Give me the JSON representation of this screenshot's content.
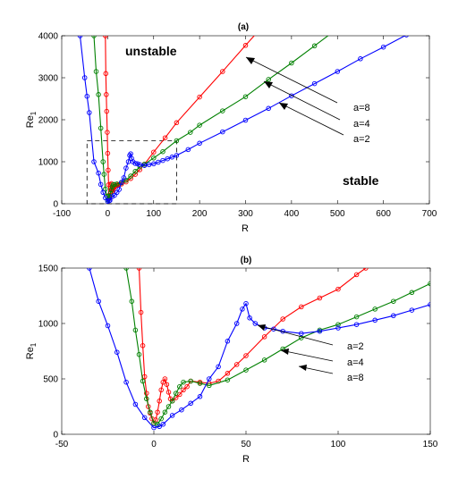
{
  "chart_data": [
    {
      "type": "line",
      "title": "(a)",
      "xlabel": "R",
      "ylabel": "Re",
      "ylabel_subscript": "1",
      "xlim": [
        -100,
        700
      ],
      "ylim": [
        0,
        4000
      ],
      "xticks": [
        -100,
        0,
        100,
        200,
        300,
        400,
        500,
        600,
        700
      ],
      "yticks": [
        0,
        1000,
        2000,
        3000,
        4000
      ],
      "grid": false,
      "annotations": [
        "unstable",
        "stable"
      ],
      "arrow_labels": [
        "a=8",
        "a=4",
        "a=2"
      ],
      "inset_box": {
        "x": [
          -45,
          150
        ],
        "y": [
          0,
          1500
        ]
      },
      "series": [
        {
          "name": "a=8",
          "color": "#ff0000",
          "points": [
            [
              -5,
              4000
            ],
            [
              -4,
              3100
            ],
            [
              -3,
              2600
            ],
            [
              -2,
              2200
            ],
            [
              -1,
              1700
            ],
            [
              0,
              1200
            ],
            [
              1,
              800
            ],
            [
              2,
              450
            ],
            [
              3,
              200
            ],
            [
              4,
              130
            ],
            [
              5,
              150
            ],
            [
              6,
              280
            ],
            [
              7,
              450
            ],
            [
              8,
              480
            ],
            [
              9,
              350
            ],
            [
              10,
              300
            ],
            [
              11,
              330
            ],
            [
              12,
              350
            ],
            [
              13,
              370
            ],
            [
              14,
              390
            ],
            [
              15,
              410
            ],
            [
              16,
              420
            ],
            [
              18,
              430
            ],
            [
              20,
              440
            ],
            [
              22,
              450
            ],
            [
              25,
              460
            ],
            [
              30,
              470
            ],
            [
              40,
              520
            ],
            [
              50,
              600
            ],
            [
              60,
              700
            ],
            [
              70,
              810
            ],
            [
              80,
              940
            ],
            [
              100,
              1230
            ],
            [
              125,
              1570
            ],
            [
              150,
              1930
            ],
            [
              200,
              2540
            ],
            [
              250,
              3150
            ],
            [
              300,
              3770
            ],
            [
              350,
              4380
            ]
          ]
        },
        {
          "name": "a=4",
          "color": "#008000",
          "points": [
            [
              -30,
              4000
            ],
            [
              -25,
              3150
            ],
            [
              -20,
              2600
            ],
            [
              -15,
              1800
            ],
            [
              -10,
              1000
            ],
            [
              -8,
              700
            ],
            [
              -5,
              350
            ],
            [
              -2,
              180
            ],
            [
              0,
              90
            ],
            [
              2,
              120
            ],
            [
              4,
              180
            ],
            [
              6,
              250
            ],
            [
              8,
              330
            ],
            [
              10,
              400
            ],
            [
              12,
              450
            ],
            [
              15,
              460
            ],
            [
              20,
              470
            ],
            [
              30,
              500
            ],
            [
              40,
              560
            ],
            [
              50,
              660
            ],
            [
              60,
              770
            ],
            [
              70,
              880
            ],
            [
              80,
              940
            ],
            [
              100,
              1090
            ],
            [
              120,
              1240
            ],
            [
              150,
              1500
            ],
            [
              180,
              1700
            ],
            [
              200,
              1870
            ],
            [
              250,
              2210
            ],
            [
              300,
              2550
            ],
            [
              350,
              2960
            ],
            [
              400,
              3350
            ],
            [
              450,
              3760
            ],
            [
              500,
              4170
            ]
          ]
        },
        {
          "name": "a=2",
          "color": "#0000ff",
          "points": [
            [
              -60,
              4000
            ],
            [
              -50,
              3000
            ],
            [
              -45,
              2560
            ],
            [
              -40,
              2170
            ],
            [
              -30,
              1000
            ],
            [
              -20,
              730
            ],
            [
              -15,
              460
            ],
            [
              -10,
              270
            ],
            [
              -5,
              140
            ],
            [
              0,
              60
            ],
            [
              3,
              70
            ],
            [
              5,
              80
            ],
            [
              10,
              170
            ],
            [
              15,
              200
            ],
            [
              20,
              270
            ],
            [
              25,
              340
            ],
            [
              30,
              510
            ],
            [
              35,
              620
            ],
            [
              40,
              850
            ],
            [
              45,
              1000
            ],
            [
              48,
              1150
            ],
            [
              50,
              1190
            ],
            [
              52,
              1080
            ],
            [
              55,
              1000
            ],
            [
              60,
              960
            ],
            [
              65,
              950
            ],
            [
              70,
              930
            ],
            [
              80,
              910
            ],
            [
              90,
              930
            ],
            [
              100,
              950
            ],
            [
              110,
              990
            ],
            [
              120,
              1030
            ],
            [
              130,
              1070
            ],
            [
              140,
              1110
            ],
            [
              150,
              1150
            ],
            [
              175,
              1290
            ],
            [
              200,
              1440
            ],
            [
              250,
              1710
            ],
            [
              300,
              1990
            ],
            [
              350,
              2270
            ],
            [
              400,
              2570
            ],
            [
              450,
              2860
            ],
            [
              500,
              3150
            ],
            [
              550,
              3450
            ],
            [
              600,
              3730
            ],
            [
              650,
              4020
            ]
          ]
        }
      ]
    },
    {
      "type": "line",
      "title": "(b)",
      "xlabel": "R",
      "ylabel": "Re",
      "ylabel_subscript": "1",
      "xlim": [
        -50,
        150
      ],
      "ylim": [
        0,
        1500
      ],
      "xticks": [
        -50,
        0,
        50,
        100,
        150
      ],
      "yticks": [
        0,
        500,
        1000,
        1500
      ],
      "grid": false,
      "arrow_labels": [
        "a=2",
        "a=4",
        "a=8"
      ],
      "series": [
        {
          "name": "a=8",
          "color": "#ff0000",
          "points": [
            [
              -8,
              1500
            ],
            [
              -7,
              1100
            ],
            [
              -6,
              800
            ],
            [
              -5,
              520
            ],
            [
              -4,
              370
            ],
            [
              -3,
              250
            ],
            [
              -2,
              190
            ],
            [
              -1,
              140
            ],
            [
              0,
              100
            ],
            [
              1,
              130
            ],
            [
              2,
              200
            ],
            [
              3,
              300
            ],
            [
              4,
              400
            ],
            [
              5,
              470
            ],
            [
              6,
              500
            ],
            [
              7,
              450
            ],
            [
              8,
              380
            ],
            [
              9,
              320
            ],
            [
              10,
              300
            ],
            [
              12,
              330
            ],
            [
              14,
              360
            ],
            [
              16,
              400
            ],
            [
              18,
              430
            ],
            [
              20,
              480
            ],
            [
              25,
              470
            ],
            [
              30,
              460
            ],
            [
              35,
              480
            ],
            [
              40,
              550
            ],
            [
              45,
              630
            ],
            [
              50,
              710
            ],
            [
              60,
              880
            ],
            [
              70,
              1040
            ],
            [
              80,
              1150
            ],
            [
              90,
              1230
            ],
            [
              100,
              1310
            ],
            [
              110,
              1440
            ],
            [
              115,
              1500
            ]
          ]
        },
        {
          "name": "a=4",
          "color": "#008000",
          "points": [
            [
              -15,
              1500
            ],
            [
              -12,
              1200
            ],
            [
              -10,
              940
            ],
            [
              -8,
              720
            ],
            [
              -6,
              480
            ],
            [
              -4,
              320
            ],
            [
              -2,
              200
            ],
            [
              0,
              100
            ],
            [
              2,
              90
            ],
            [
              4,
              140
            ],
            [
              6,
              200
            ],
            [
              8,
              250
            ],
            [
              10,
              300
            ],
            [
              12,
              370
            ],
            [
              14,
              430
            ],
            [
              16,
              470
            ],
            [
              20,
              480
            ],
            [
              25,
              460
            ],
            [
              30,
              440
            ],
            [
              40,
              490
            ],
            [
              50,
              580
            ],
            [
              60,
              670
            ],
            [
              70,
              770
            ],
            [
              80,
              870
            ],
            [
              90,
              940
            ],
            [
              100,
              990
            ],
            [
              110,
              1060
            ],
            [
              120,
              1130
            ],
            [
              130,
              1200
            ],
            [
              140,
              1280
            ],
            [
              150,
              1360
            ]
          ]
        },
        {
          "name": "a=2",
          "color": "#0000ff",
          "points": [
            [
              -35,
              1500
            ],
            [
              -30,
              1200
            ],
            [
              -25,
              980
            ],
            [
              -20,
              740
            ],
            [
              -15,
              470
            ],
            [
              -10,
              270
            ],
            [
              -5,
              150
            ],
            [
              0,
              60
            ],
            [
              3,
              70
            ],
            [
              5,
              90
            ],
            [
              10,
              170
            ],
            [
              15,
              220
            ],
            [
              20,
              280
            ],
            [
              25,
              340
            ],
            [
              30,
              500
            ],
            [
              35,
              610
            ],
            [
              40,
              840
            ],
            [
              45,
              1000
            ],
            [
              48,
              1130
            ],
            [
              50,
              1180
            ],
            [
              52,
              1050
            ],
            [
              55,
              1000
            ],
            [
              60,
              960
            ],
            [
              65,
              950
            ],
            [
              70,
              930
            ],
            [
              80,
              910
            ],
            [
              90,
              930
            ],
            [
              100,
              960
            ],
            [
              110,
              990
            ],
            [
              120,
              1030
            ],
            [
              130,
              1070
            ],
            [
              140,
              1120
            ],
            [
              150,
              1170
            ]
          ]
        }
      ]
    }
  ]
}
